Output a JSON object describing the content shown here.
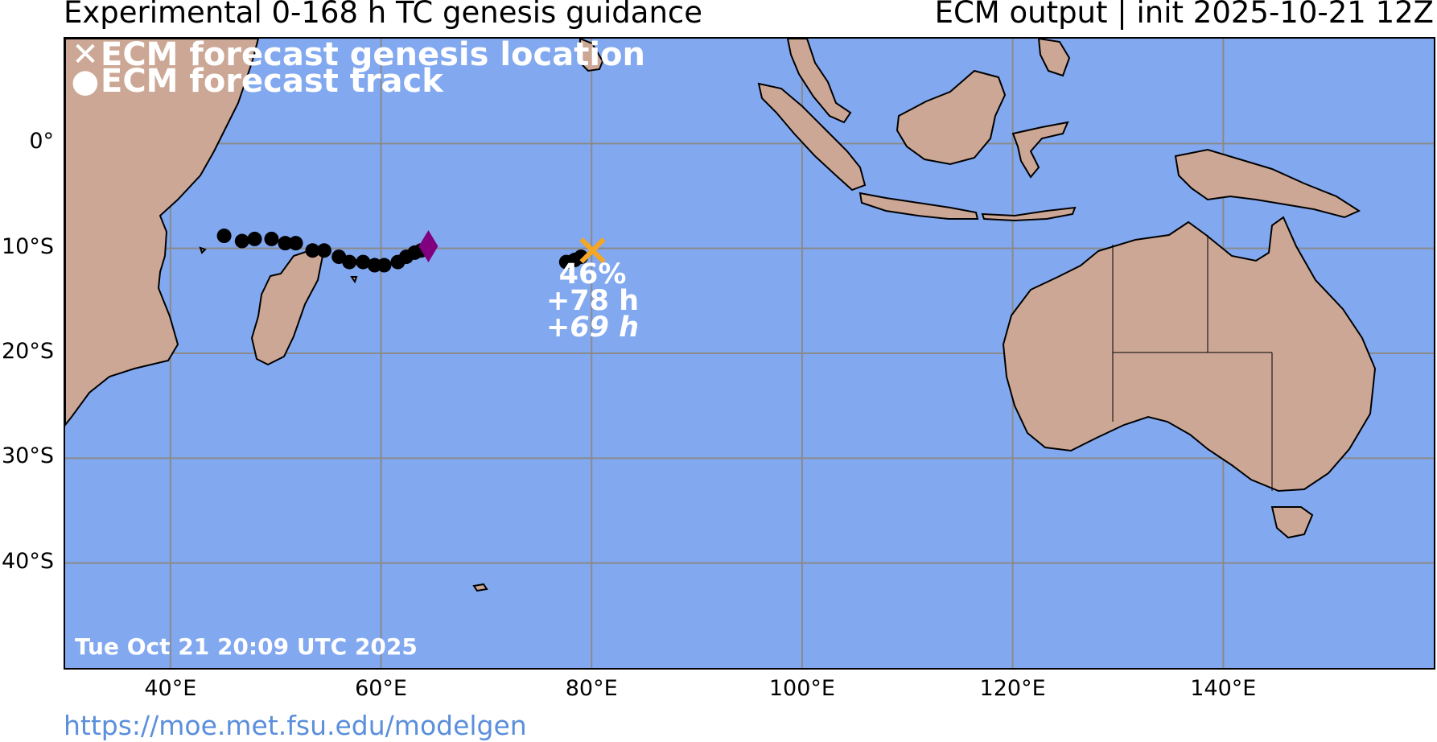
{
  "header": {
    "title_left": "Experimental 0-168 h TC genesis guidance",
    "title_right": "ECM output | init 2025-10-21 12Z"
  },
  "legend": {
    "genesis_symbol": "✕",
    "genesis_label": "ECM forecast genesis location",
    "track_symbol": "●",
    "track_label": "ECM forecast track"
  },
  "axes": {
    "lon_ticks": [
      "40°E",
      "60°E",
      "80°E",
      "100°E",
      "120°E",
      "140°E"
    ],
    "lat_ticks": [
      "0°",
      "10°S",
      "20°S",
      "30°S",
      "40°S"
    ],
    "lon_range": [
      30,
      160
    ],
    "lat_range": [
      -50,
      10
    ]
  },
  "storms": [
    {
      "id": "west",
      "marker": "diamond",
      "marker_color": "#800080",
      "genesis_point": [
        64.5,
        -9.8
      ],
      "track": [
        [
          45.1,
          -8.8
        ],
        [
          46.8,
          -9.3
        ],
        [
          48.0,
          -9.1
        ],
        [
          49.6,
          -9.1
        ],
        [
          50.9,
          -9.5
        ],
        [
          51.9,
          -9.5
        ],
        [
          53.5,
          -10.2
        ],
        [
          54.6,
          -10.2
        ],
        [
          56.0,
          -10.8
        ],
        [
          57.0,
          -11.3
        ],
        [
          58.3,
          -11.3
        ],
        [
          59.4,
          -11.6
        ],
        [
          60.3,
          -11.6
        ],
        [
          61.6,
          -11.3
        ],
        [
          62.4,
          -10.8
        ],
        [
          63.2,
          -10.4
        ],
        [
          63.8,
          -10.2
        ]
      ]
    },
    {
      "id": "central",
      "marker": "x",
      "marker_color": "#f5a623",
      "genesis_point": [
        80.1,
        -10.2
      ],
      "track": [
        [
          77.6,
          -11.3
        ],
        [
          78.4,
          -11.1
        ],
        [
          79.0,
          -10.8
        ]
      ],
      "probability": "46%",
      "lead_time": "+78 h",
      "lead_time_alt": "+69 h"
    }
  ],
  "colors": {
    "ocean": "#82a8f0",
    "land": "#cca795",
    "gridline": "#8a8a8a",
    "track": "#000000",
    "url": "#5b8fdc"
  },
  "footer": {
    "timestamp": "Tue Oct 21 20:09 UTC 2025",
    "url": "https://moe.met.fsu.edu/modelgen"
  }
}
